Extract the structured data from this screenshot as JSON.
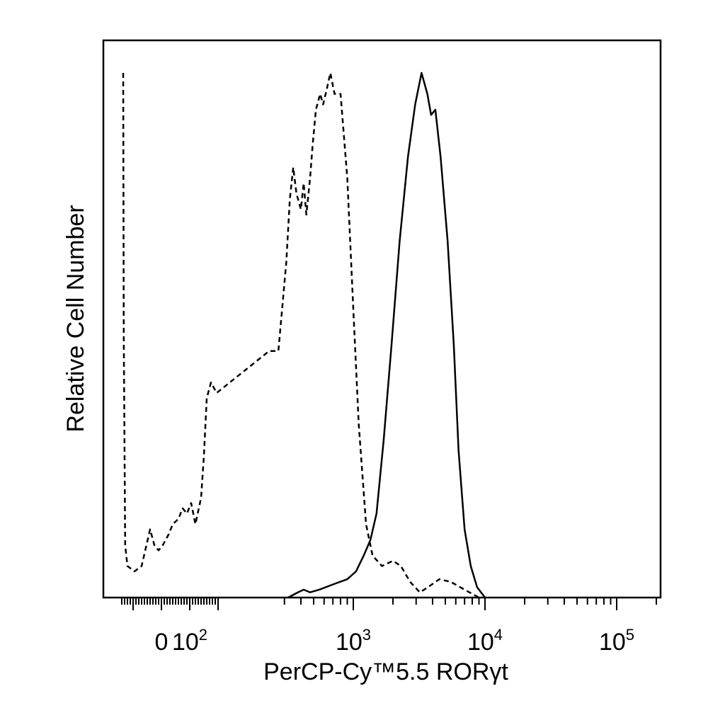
{
  "chart_data": {
    "type": "line",
    "title": "",
    "xlabel": "PerCP-Cy™5.5  RORγt",
    "ylabel": "Relative Cell Number",
    "x_scale": "biexponential",
    "xlim": [
      -150,
      250000
    ],
    "ylim": [
      0,
      1
    ],
    "grid": false,
    "legend": "none",
    "x_tick_labels": [
      {
        "value": 0,
        "base": "0",
        "exp": ""
      },
      {
        "value": 100,
        "base": "10",
        "exp": "2"
      },
      {
        "value": 1000,
        "base": "10",
        "exp": "3"
      },
      {
        "value": 10000,
        "base": "10",
        "exp": "4"
      },
      {
        "value": 100000,
        "base": "10",
        "exp": "5"
      }
    ],
    "series": [
      {
        "style": "dashed",
        "points": [
          [
            -135,
            1.0
          ],
          [
            -133,
            0.5
          ],
          [
            -128,
            0.1
          ],
          [
            -120,
            0.06
          ],
          [
            -95,
            0.05
          ],
          [
            -70,
            0.06
          ],
          [
            -40,
            0.13
          ],
          [
            -25,
            0.1
          ],
          [
            -10,
            0.09
          ],
          [
            5,
            0.1
          ],
          [
            25,
            0.12
          ],
          [
            40,
            0.14
          ],
          [
            60,
            0.15
          ],
          [
            75,
            0.17
          ],
          [
            90,
            0.16
          ],
          [
            105,
            0.18
          ],
          [
            120,
            0.14
          ],
          [
            140,
            0.19
          ],
          [
            150,
            0.27
          ],
          [
            160,
            0.38
          ],
          [
            175,
            0.41
          ],
          [
            195,
            0.39
          ],
          [
            230,
            0.47
          ],
          [
            270,
            0.47
          ],
          [
            310,
            0.64
          ],
          [
            330,
            0.76
          ],
          [
            350,
            0.82
          ],
          [
            370,
            0.77
          ],
          [
            400,
            0.74
          ],
          [
            420,
            0.79
          ],
          [
            440,
            0.73
          ],
          [
            470,
            0.8
          ],
          [
            490,
            0.86
          ],
          [
            520,
            0.93
          ],
          [
            560,
            0.96
          ],
          [
            590,
            0.94
          ],
          [
            630,
            0.97
          ],
          [
            670,
            1.0
          ],
          [
            720,
            0.96
          ],
          [
            800,
            0.96
          ],
          [
            900,
            0.8
          ],
          [
            1000,
            0.55
          ],
          [
            1100,
            0.33
          ],
          [
            1250,
            0.14
          ],
          [
            1400,
            0.08
          ],
          [
            1650,
            0.06
          ],
          [
            2000,
            0.07
          ],
          [
            2300,
            0.06
          ],
          [
            2700,
            0.03
          ],
          [
            3200,
            0.01
          ],
          [
            3700,
            0.02
          ],
          [
            4500,
            0.035
          ],
          [
            5500,
            0.03
          ],
          [
            7000,
            0.015
          ],
          [
            9000,
            0.0
          ]
        ]
      },
      {
        "style": "solid",
        "points": [
          [
            320,
            0.0
          ],
          [
            380,
            0.01
          ],
          [
            420,
            0.015
          ],
          [
            470,
            0.01
          ],
          [
            550,
            0.015
          ],
          [
            700,
            0.025
          ],
          [
            900,
            0.035
          ],
          [
            1050,
            0.05
          ],
          [
            1200,
            0.08
          ],
          [
            1350,
            0.11
          ],
          [
            1500,
            0.16
          ],
          [
            1700,
            0.3
          ],
          [
            1950,
            0.48
          ],
          [
            2250,
            0.68
          ],
          [
            2600,
            0.84
          ],
          [
            2950,
            0.94
          ],
          [
            3300,
            1.0
          ],
          [
            3650,
            0.96
          ],
          [
            3900,
            0.92
          ],
          [
            4200,
            0.93
          ],
          [
            4600,
            0.84
          ],
          [
            5200,
            0.68
          ],
          [
            5800,
            0.48
          ],
          [
            6300,
            0.28
          ],
          [
            7000,
            0.13
          ],
          [
            7800,
            0.06
          ],
          [
            8700,
            0.02
          ],
          [
            10000,
            0.0
          ]
        ]
      }
    ]
  }
}
